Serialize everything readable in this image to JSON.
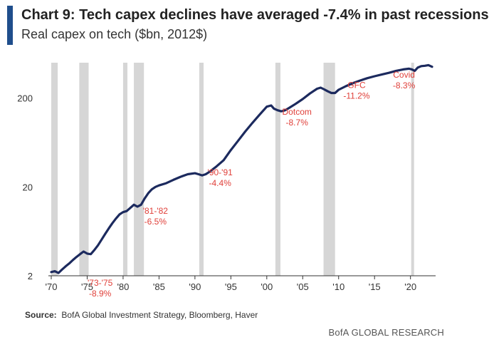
{
  "header": {
    "title": "Chart 9: Tech capex declines have averaged -7.4% in past recessions",
    "subtitle": "Real capex on tech ($bn, 2012$)"
  },
  "footer": {
    "source_label": "Source:",
    "source_text": "BofA Global Investment Strategy, Bloomberg, Haver",
    "brand": "BofA GLOBAL RESEARCH"
  },
  "colors": {
    "line": "#1c2a5e",
    "recession": "#d6d6d6",
    "annotation": "#e0403a",
    "accent": "#1f4e8c"
  },
  "chart_data": {
    "type": "line",
    "title": "Chart 9: Tech capex declines have averaged -7.4% in past recessions",
    "subtitle": "Real capex on tech ($bn, 2012$)",
    "xlabel": "",
    "ylabel": "",
    "yscale": "log",
    "xlim": [
      1970,
      2023.5
    ],
    "ylim": [
      2,
      500
    ],
    "grid": false,
    "legend": "none",
    "x_ticks": [
      1970,
      1975,
      1980,
      1985,
      1990,
      1995,
      2000,
      2005,
      2010,
      2015,
      2020
    ],
    "x_tick_labels": [
      "'70",
      "'75",
      "'80",
      "'85",
      "'90",
      "'95",
      "'00",
      "'05",
      "'10",
      "'15",
      "'20"
    ],
    "y_ticks": [
      2,
      20,
      200
    ],
    "y_tick_labels": [
      "2",
      "20",
      "200"
    ],
    "recessions": [
      {
        "start": 1970.0,
        "end": 1970.9
      },
      {
        "start": 1973.9,
        "end": 1975.2
      },
      {
        "start": 1980.0,
        "end": 1980.6
      },
      {
        "start": 1981.5,
        "end": 1982.9
      },
      {
        "start": 1990.6,
        "end": 1991.2
      },
      {
        "start": 2001.2,
        "end": 2001.9
      },
      {
        "start": 2007.9,
        "end": 2009.5
      },
      {
        "start": 2020.1,
        "end": 2020.5
      }
    ],
    "series": [
      {
        "x": [
          1970.0,
          1970.5,
          1971.0,
          1971.5,
          1972.0,
          1972.5,
          1973.0,
          1973.5,
          1974.0,
          1974.5,
          1975.0,
          1975.5,
          1976.0,
          1976.5,
          1977.0,
          1977.5,
          1978.0,
          1978.5,
          1979.0,
          1979.5,
          1980.0,
          1980.5,
          1981.0,
          1981.5,
          1982.0,
          1982.5,
          1983.0,
          1983.5,
          1984.0,
          1984.5,
          1985.0,
          1986.0,
          1987.0,
          1988.0,
          1989.0,
          1990.0,
          1990.5,
          1991.0,
          1991.5,
          1992.0,
          1993.0,
          1994.0,
          1995.0,
          1996.0,
          1997.0,
          1998.0,
          1999.0,
          2000.0,
          2000.6,
          2001.0,
          2001.5,
          2002.0,
          2002.5,
          2003.0,
          2004.0,
          2005.0,
          2006.0,
          2007.0,
          2007.5,
          2008.0,
          2008.5,
          2009.0,
          2009.5,
          2010.0,
          2011.0,
          2012.0,
          2013.0,
          2014.0,
          2015.0,
          2016.0,
          2017.0,
          2018.0,
          2019.0,
          2019.8,
          2020.2,
          2020.6,
          2021.0,
          2021.5,
          2022.0,
          2022.5,
          2023.0
        ],
        "y": [
          2.2,
          2.25,
          2.15,
          2.35,
          2.55,
          2.75,
          3.0,
          3.25,
          3.5,
          3.75,
          3.55,
          3.5,
          3.9,
          4.4,
          5.1,
          5.9,
          6.8,
          7.8,
          8.8,
          9.8,
          10.4,
          10.7,
          11.6,
          12.6,
          12.0,
          12.6,
          14.8,
          17.0,
          18.8,
          20.0,
          20.8,
          22.0,
          24.0,
          26.0,
          27.8,
          28.5,
          27.8,
          27.0,
          27.8,
          29.5,
          34.0,
          40.0,
          52.0,
          66.0,
          84.0,
          105.0,
          130.0,
          160.0,
          165.0,
          152.0,
          146.0,
          142.0,
          145.0,
          153.0,
          172.0,
          195.0,
          225.0,
          255.0,
          262.0,
          250.0,
          238.0,
          228.0,
          228.0,
          248.0,
          272.0,
          295.0,
          315.0,
          335.0,
          352.0,
          368.0,
          385.0,
          405.0,
          420.0,
          428.0,
          420.0,
          405.0,
          440.0,
          458.0,
          462.0,
          470.0,
          450.0
        ]
      }
    ],
    "annotations": [
      {
        "x": 1976.8,
        "y": 1.55,
        "lines": [
          "'73-'75",
          "-8.9%"
        ]
      },
      {
        "x": 1984.5,
        "y": 10.0,
        "lines": [
          "'81-'82",
          "-6.5%"
        ]
      },
      {
        "x": 1993.5,
        "y": 27.0,
        "lines": [
          "'90-'91",
          "-4.4%"
        ]
      },
      {
        "x": 2004.2,
        "y": 130.0,
        "lines": [
          "Dotcom",
          "-8.7%"
        ]
      },
      {
        "x": 2012.5,
        "y": 260.0,
        "lines": [
          "GFC",
          "-11.2%"
        ]
      },
      {
        "x": 2019.1,
        "y": 340.0,
        "lines": [
          "Covid",
          "-8.3%"
        ]
      }
    ]
  }
}
